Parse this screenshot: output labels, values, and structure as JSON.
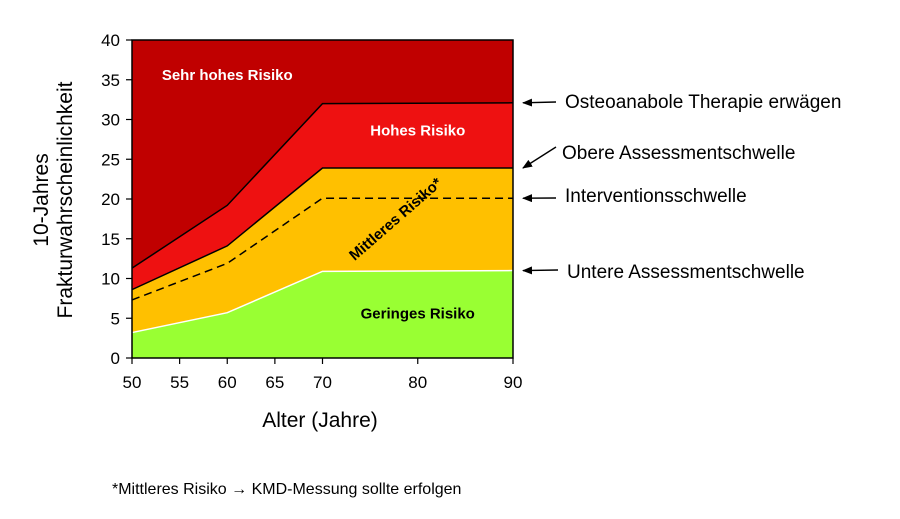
{
  "chart_data": {
    "type": "area",
    "xlabel": "Alter (Jahre)",
    "ylabel_line1": "10-Jahres",
    "ylabel_line2": "Frakturwahrscheinlichkeit",
    "xlim": [
      50,
      90
    ],
    "ylim": [
      0,
      40
    ],
    "xticks": [
      50,
      55,
      60,
      65,
      70,
      80,
      90
    ],
    "yticks": [
      0,
      5,
      10,
      15,
      20,
      25,
      30,
      35,
      40
    ],
    "x": [
      50,
      60,
      70,
      90
    ],
    "boundaries": {
      "lower_assessment": [
        3.2,
        5.7,
        10.9,
        11.0
      ],
      "intervention": [
        7.3,
        11.9,
        20.1,
        20.1
      ],
      "upper_assessment": [
        8.6,
        14.1,
        23.9,
        23.9
      ],
      "osteoanabolic": [
        11.3,
        19.2,
        32.0,
        32.1
      ],
      "top": [
        40,
        40,
        40,
        40
      ]
    },
    "zones": [
      {
        "name": "Geringes Risiko",
        "color": "#99ff33",
        "text_color": "#000000"
      },
      {
        "name": "Mittleres Risiko*",
        "color": "#ffc000",
        "text_color": "#000000"
      },
      {
        "name": "Hohes Risiko",
        "color": "#ee1111",
        "text_color": "#ffffff"
      },
      {
        "name": "Sehr hohes Risiko",
        "color": "#c00000",
        "text_color": "#ffffff"
      }
    ],
    "annotations": [
      {
        "text": "Osteoanabole Therapie erwägen",
        "boundary": "osteoanabolic"
      },
      {
        "text": "Obere Assessmentschwelle",
        "boundary": "upper_assessment"
      },
      {
        "text": "Interventionsschwelle",
        "boundary": "intervention"
      },
      {
        "text": "Untere Assessmentschwelle",
        "boundary": "lower_assessment"
      }
    ]
  },
  "footnote": "*Mittleres Risiko → KMD-Messung sollte erfolgen"
}
